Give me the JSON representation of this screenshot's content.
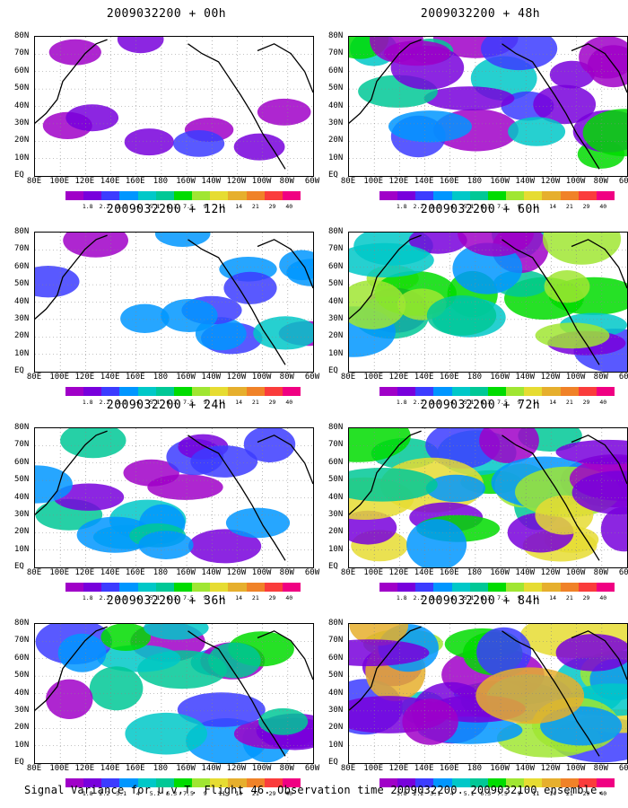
{
  "caption": "Signal Variance for u,v,T. Flight 46. Observation time 2009032200. 2009032100 ensemble.",
  "lat_labels": [
    "80N",
    "70N",
    "60N",
    "50N",
    "40N",
    "30N",
    "20N",
    "10N",
    "EQ"
  ],
  "lon_labels": [
    "80E",
    "100E",
    "120E",
    "140E",
    "160E",
    "180",
    "160W",
    "140W",
    "120W",
    "100W",
    "80W",
    "60W"
  ],
  "colorbar": {
    "labels": [
      "1.8",
      "2.2",
      "3.1",
      "4",
      "5.1",
      "6.3",
      "7.5",
      "9",
      "11",
      "14",
      "21",
      "29",
      "40"
    ],
    "colors": [
      "#a000c8",
      "#7800dc",
      "#3c3cff",
      "#0096ff",
      "#00c8c8",
      "#00c896",
      "#00dc00",
      "#a0e632",
      "#e6dc32",
      "#e6af2d",
      "#f08228",
      "#fa3c3c",
      "#f00082"
    ]
  },
  "panels": [
    {
      "title": "2009032200 + 00h",
      "coverage": 0.1
    },
    {
      "title": "2009032200 + 48h",
      "coverage": 0.55
    },
    {
      "title": "2009032200 + 12h",
      "coverage": 0.25
    },
    {
      "title": "2009032200 + 60h",
      "coverage": 0.65
    },
    {
      "title": "2009032200 + 24h",
      "coverage": 0.4
    },
    {
      "title": "2009032200 + 72h",
      "coverage": 0.75
    },
    {
      "title": "2009032200 + 36h",
      "coverage": 0.5
    },
    {
      "title": "2009032200 + 84h",
      "coverage": 0.85
    }
  ]
}
